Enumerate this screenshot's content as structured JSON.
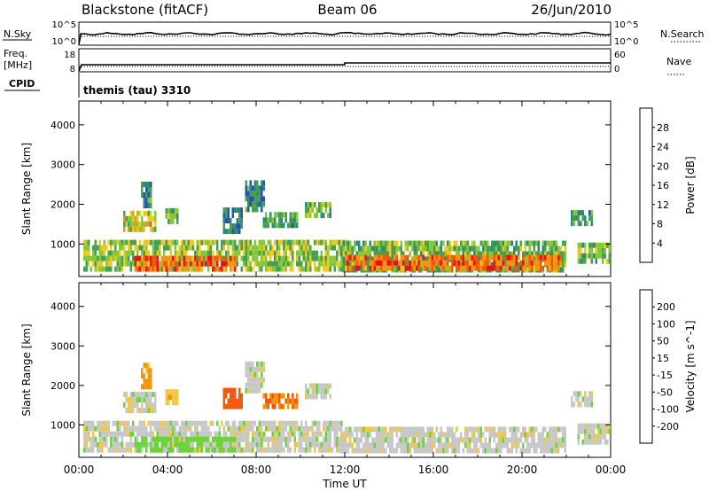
{
  "header": {
    "station": "Blackstone (fitACF)",
    "beam": "Beam 06",
    "date": "26/Jun/2010"
  },
  "strip_nsky": {
    "left_label": "N.Sky",
    "right_label": "N.Search",
    "ticks": [
      "10^5",
      "10^0"
    ],
    "ticks_right": [
      "10^5",
      "10^0"
    ]
  },
  "strip_freq": {
    "left_label_1": "Freq.",
    "left_label_2": "[MHz]",
    "ticks_left": [
      "18",
      "8"
    ],
    "right_label": "Nave",
    "ticks_right": [
      "60",
      "0"
    ]
  },
  "strip_cpid": {
    "label": "CPID",
    "value": "themis (tau) 3310"
  },
  "colors": {
    "power": [
      "#1e1ee6",
      "#2850b4",
      "#2e8a78",
      "#46a050",
      "#86c83c",
      "#f0c81e",
      "#f09614",
      "#f05a0a",
      "#e61414"
    ],
    "velocity": [
      "#e61414",
      "#f05a0a",
      "#f0960a",
      "#f0c846",
      "#c8c8c8",
      "#6ed23c",
      "#2e8a5a",
      "#2850b4",
      "#1e1ee6"
    ],
    "ground": "#c8c8c8"
  },
  "chart_data": [
    {
      "type": "heatmap",
      "name": "power",
      "xlabel": "Time UT",
      "ylabel": "Slant Range [km]",
      "ytick_labels": [
        "1000",
        "2000",
        "3000",
        "4000"
      ],
      "yticks": [
        1000,
        2000,
        3000,
        4000
      ],
      "ylim": [
        180,
        4600
      ],
      "xlim_hours": [
        0,
        24
      ],
      "xtick_labels": [
        "00:00",
        "04:00",
        "08:00",
        "12:00",
        "16:00",
        "20:00",
        "00:00"
      ],
      "colorbar": {
        "label": "Power [dB]",
        "range": [
          0,
          32
        ],
        "tick_values": [
          4,
          8,
          12,
          16,
          20,
          24,
          28
        ],
        "tick_labels": [
          "4",
          "8",
          "12",
          "16",
          "20",
          "24",
          "28"
        ]
      },
      "regions": [
        {
          "t0": 0.2,
          "t1": 12.0,
          "r0": 300,
          "r1": 1000,
          "level": 16
        },
        {
          "t0": 2.5,
          "t1": 7.0,
          "r0": 300,
          "r1": 700,
          "level": 26
        },
        {
          "t0": 2.0,
          "t1": 3.5,
          "r0": 1300,
          "r1": 1800,
          "level": 18
        },
        {
          "t0": 2.8,
          "t1": 3.3,
          "r0": 1900,
          "r1": 2500,
          "level": 10
        },
        {
          "t0": 3.9,
          "t1": 4.4,
          "r0": 1500,
          "r1": 1900,
          "level": 14
        },
        {
          "t0": 6.5,
          "t1": 7.3,
          "r0": 1250,
          "r1": 1800,
          "level": 8
        },
        {
          "t0": 7.5,
          "t1": 8.3,
          "r0": 1800,
          "r1": 2500,
          "level": 10
        },
        {
          "t0": 8.3,
          "t1": 9.8,
          "r0": 1400,
          "r1": 1800,
          "level": 12
        },
        {
          "t0": 10.2,
          "t1": 11.3,
          "r0": 1650,
          "r1": 2050,
          "level": 14
        },
        {
          "t0": 11.8,
          "t1": 22.0,
          "r0": 280,
          "r1": 950,
          "level": 14
        },
        {
          "t0": 12.0,
          "t1": 21.8,
          "r0": 320,
          "r1": 720,
          "level": 26
        },
        {
          "t0": 22.2,
          "t1": 23.2,
          "r0": 1450,
          "r1": 1850,
          "level": 12
        },
        {
          "t0": 22.5,
          "t1": 24.0,
          "r0": 500,
          "r1": 950,
          "level": 14
        }
      ]
    },
    {
      "type": "heatmap",
      "name": "velocity",
      "xlabel": "Time UT",
      "ylabel": "Slant Range [km]",
      "ytick_labels": [
        "1000",
        "2000",
        "3000",
        "4000"
      ],
      "yticks": [
        1000,
        2000,
        3000,
        4000
      ],
      "ylim": [
        180,
        4600
      ],
      "xlim_hours": [
        0,
        24
      ],
      "xtick_labels": [
        "00:00",
        "04:00",
        "08:00",
        "12:00",
        "16:00",
        "20:00",
        "00:00"
      ],
      "colorbar": {
        "label": "Velocity [m s^-1]",
        "bounds": [
          -250,
          -200,
          -100,
          -50,
          -15,
          15,
          50,
          100,
          200,
          250
        ],
        "tick_labels": [
          "-200",
          "-100",
          "-50",
          "-15",
          "15",
          "50",
          "100",
          "200"
        ]
      },
      "regions": [
        {
          "t0": 0.2,
          "t1": 12.0,
          "r0": 300,
          "r1": 1000,
          "velocity": 0
        },
        {
          "t0": 2.5,
          "t1": 7.0,
          "r0": 300,
          "r1": 600,
          "velocity": 30
        },
        {
          "t0": 2.0,
          "t1": 3.5,
          "r0": 1300,
          "r1": 1800,
          "velocity": 0
        },
        {
          "t0": 2.8,
          "t1": 3.3,
          "r0": 1900,
          "r1": 2500,
          "velocity": -60
        },
        {
          "t0": 3.9,
          "t1": 4.4,
          "r0": 1500,
          "r1": 1900,
          "velocity": -40
        },
        {
          "t0": 6.5,
          "t1": 7.3,
          "r0": 1400,
          "r1": 1900,
          "velocity": -150
        },
        {
          "t0": 7.5,
          "t1": 8.3,
          "r0": 1800,
          "r1": 2500,
          "velocity": 0
        },
        {
          "t0": 8.3,
          "t1": 9.8,
          "r0": 1400,
          "r1": 1800,
          "velocity": -100
        },
        {
          "t0": 10.2,
          "t1": 11.3,
          "r0": 1650,
          "r1": 2050,
          "velocity": 0
        },
        {
          "t0": 11.8,
          "t1": 22.0,
          "r0": 280,
          "r1": 950,
          "velocity": 0
        },
        {
          "t0": 22.2,
          "t1": 23.2,
          "r0": 1450,
          "r1": 1850,
          "velocity": 0
        },
        {
          "t0": 22.5,
          "t1": 24.0,
          "r0": 500,
          "r1": 950,
          "velocity": 0
        }
      ]
    }
  ]
}
